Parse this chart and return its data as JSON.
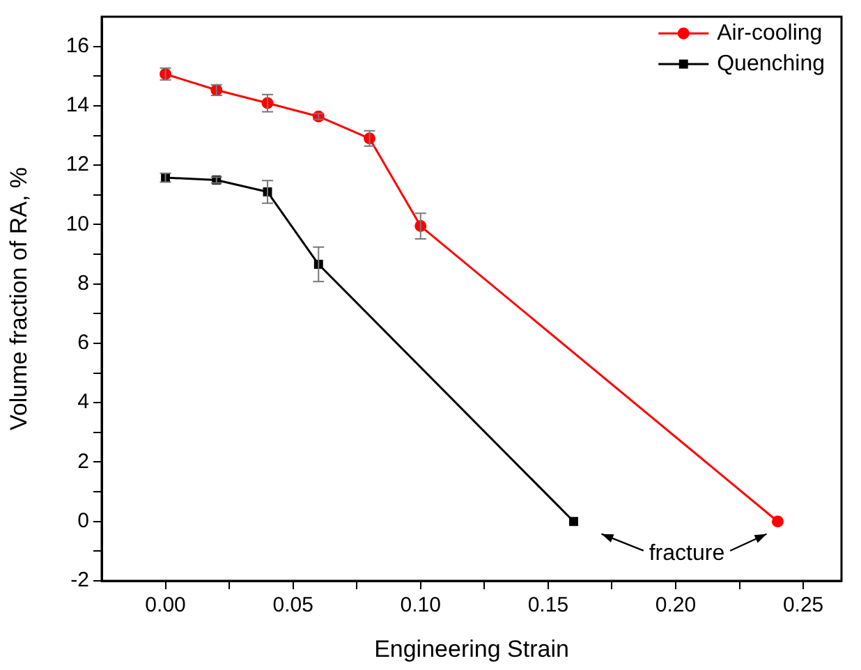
{
  "chart_data": {
    "type": "line",
    "xlabel": "Engineering Strain",
    "ylabel": "Volume fraction of RA, %",
    "xlim": [
      -0.025,
      0.265
    ],
    "xticks": [
      {
        "value": 0,
        "label": "0.00"
      },
      {
        "value": 0.025,
        "label": null
      },
      0.05,
      {
        "value": 0.075,
        "label": null
      },
      {
        "value": 0.1,
        "label": "0.10"
      },
      {
        "value": 0.125,
        "label": null
      },
      0.15,
      {
        "value": 0.175,
        "label": null
      },
      {
        "value": 0.2,
        "label": "0.20"
      },
      {
        "value": 0.225,
        "label": null
      },
      0.25
    ],
    "ylim": [
      -2,
      17
    ],
    "yticks": [
      -2,
      {
        "value": -1,
        "label": null
      },
      0,
      {
        "value": 1,
        "label": null
      },
      2,
      {
        "value": 3,
        "label": null
      },
      4,
      {
        "value": 5,
        "label": null
      },
      6,
      {
        "value": 7,
        "label": null
      },
      8,
      {
        "value": 9,
        "label": null
      },
      10,
      {
        "value": 11,
        "label": null
      },
      12,
      {
        "value": 13,
        "label": null
      },
      14,
      {
        "value": 15,
        "label": null
      },
      16
    ],
    "grid": false,
    "legend": "top right",
    "line_style": "solid",
    "series": [
      {
        "name": "Air-cooling",
        "color": "#ff0000",
        "marker": "circle",
        "x": [
          0,
          0.02,
          0.04,
          0.06,
          0.08,
          0.1,
          0.24
        ],
        "values": [
          15.07,
          14.53,
          14.09,
          13.64,
          12.9,
          9.95,
          0
        ],
        "errors": [
          0.2,
          0.18,
          0.29,
          0.1,
          0.26,
          0.43,
          null
        ]
      },
      {
        "name": "Quenching",
        "color": "#000000",
        "marker": "square",
        "x": [
          0,
          0.02,
          0.04,
          0.06,
          0.16
        ],
        "values": [
          11.58,
          11.5,
          11.1,
          8.66,
          0
        ],
        "errors": [
          0.15,
          0.1,
          0.38,
          0.58,
          null
        ]
      }
    ],
    "annotations": [
      "fracture"
    ]
  }
}
